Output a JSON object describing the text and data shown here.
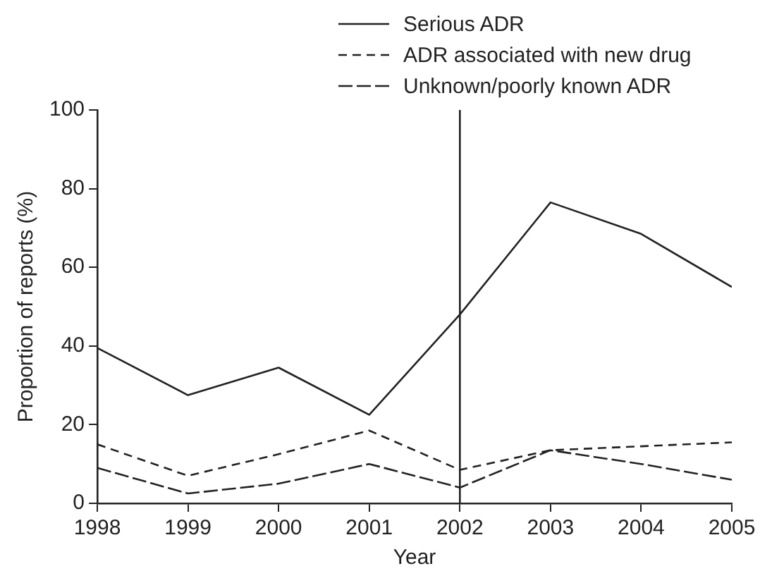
{
  "chart_data": {
    "type": "line",
    "xlabel": "Year",
    "ylabel": "Proportion of reports (%)",
    "x": [
      1998,
      1999,
      2000,
      2001,
      2002,
      2003,
      2004,
      2005
    ],
    "xlim": [
      1998,
      2005
    ],
    "xticks": [
      1998,
      1999,
      2000,
      2001,
      2002,
      2003,
      2004,
      2005
    ],
    "ylim": [
      0,
      100
    ],
    "yticks": [
      0,
      20,
      40,
      60,
      80,
      100
    ],
    "grid": false,
    "legend": "top right",
    "marker": "none",
    "ref_lines": [
      {
        "axis": "x",
        "value": 2002,
        "color": "#222222",
        "line_style": "solid"
      }
    ],
    "series": [
      {
        "name": "Serious ADR",
        "color": "#222222",
        "line_style": "solid",
        "values": [
          39.5,
          27.5,
          34.5,
          22.5,
          48,
          76.5,
          68.5,
          55
        ]
      },
      {
        "name": "ADR associated with new drug",
        "color": "#222222",
        "line_style": "dashed",
        "values": [
          15,
          7,
          12.5,
          18.5,
          8.5,
          13.5,
          14.5,
          15.5
        ]
      },
      {
        "name": "Unknown/poorly known ADR",
        "color": "#222222",
        "line_style": "longdash",
        "values": [
          9,
          2.5,
          5,
          10,
          4,
          13.5,
          10,
          6
        ]
      }
    ]
  }
}
